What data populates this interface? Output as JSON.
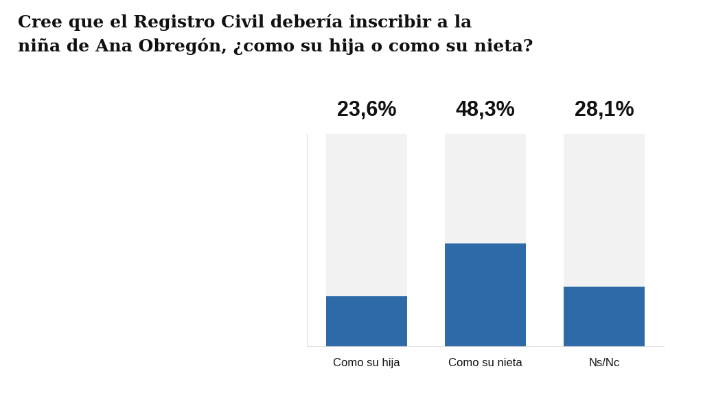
{
  "chart_data": {
    "type": "bar",
    "title": "Cree que el Registro Civil debería inscribir a la\nniña de Ana Obregón, ¿como su hija o como su nieta?",
    "categories": [
      "Como su hija",
      "Como su nieta",
      "Ns/Nc"
    ],
    "values": [
      23.6,
      48.3,
      28.1
    ],
    "value_labels": [
      "23,6%",
      "48,3%",
      "28,1%"
    ],
    "color": "#2e6aa8",
    "ylim": [
      0,
      100
    ],
    "yticks": [],
    "data_labels": true,
    "tick_labels": "x",
    "grid": false
  }
}
